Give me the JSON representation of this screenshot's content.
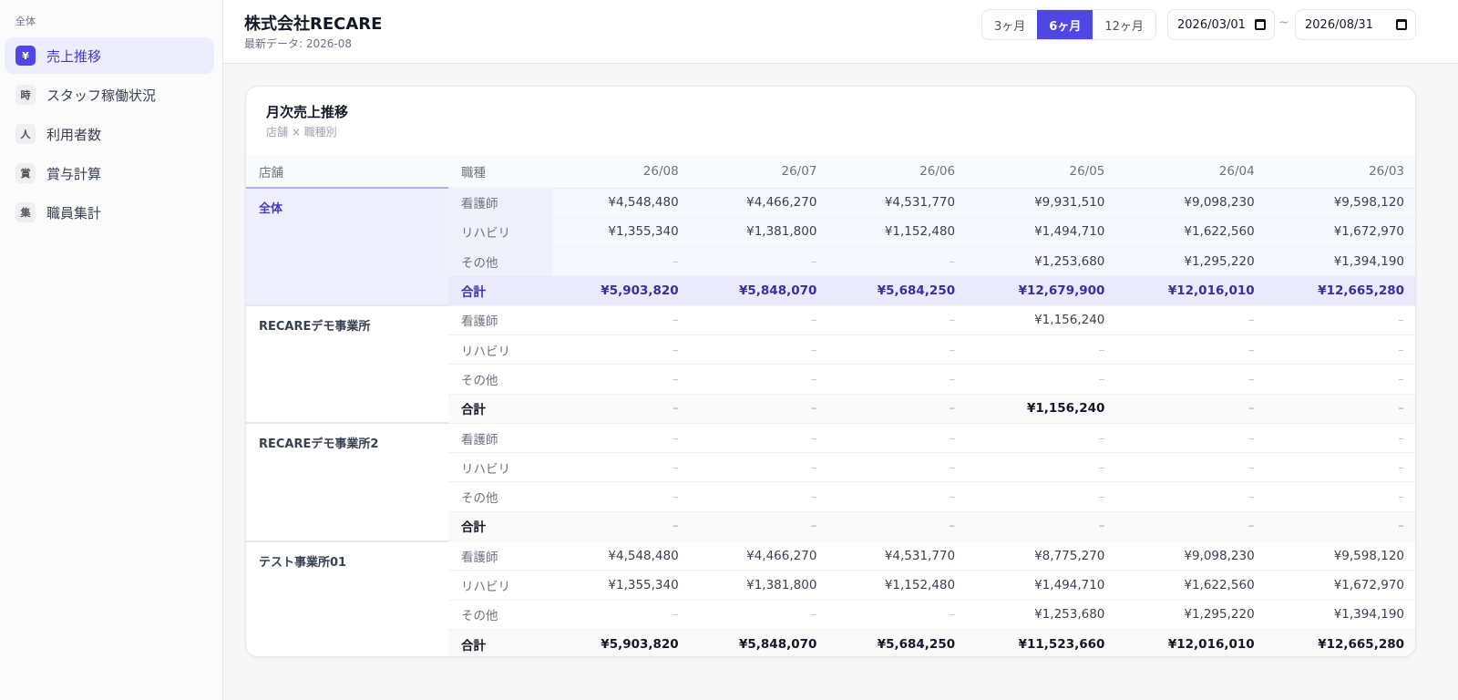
{
  "sidebar": {
    "section": "全体",
    "items": [
      {
        "icon": "¥",
        "label": "売上推移"
      },
      {
        "icon": "時",
        "label": "スタッフ稼働状況"
      },
      {
        "icon": "人",
        "label": "利用者数"
      },
      {
        "icon": "賞",
        "label": "賞与計算"
      },
      {
        "icon": "集",
        "label": "職員集計"
      }
    ]
  },
  "header": {
    "title": "株式会社RECARE",
    "subtitle": "最新データ: 2026-08",
    "ranges": [
      "3ヶ月",
      "6ヶ月",
      "12ヶ月"
    ],
    "start_date": "2026/03/01",
    "separator": "~",
    "end_date": "2026/08/31"
  },
  "card": {
    "title": "月次売上推移",
    "subtitle": "店舗 × 職種別",
    "columns": [
      "店舗",
      "職種",
      "26/08",
      "26/07",
      "26/06",
      "26/05",
      "26/04",
      "26/03"
    ],
    "groups": [
      {
        "store": "全体",
        "rows": [
          {
            "role": "看護師",
            "cells": [
              "¥4,548,480",
              "¥4,466,270",
              "¥4,531,770",
              "¥9,931,510",
              "¥9,098,230",
              "¥9,598,120"
            ]
          },
          {
            "role": "リハビリ",
            "cells": [
              "¥1,355,340",
              "¥1,381,800",
              "¥1,152,480",
              "¥1,494,710",
              "¥1,622,560",
              "¥1,672,970"
            ]
          },
          {
            "role": "その他",
            "cells": [
              "–",
              "–",
              "–",
              "¥1,253,680",
              "¥1,295,220",
              "¥1,394,190"
            ]
          },
          {
            "role": "合計",
            "cells": [
              "¥5,903,820",
              "¥5,848,070",
              "¥5,684,250",
              "¥12,679,900",
              "¥12,016,010",
              "¥12,665,280"
            ]
          }
        ]
      },
      {
        "store": "RECAREデモ事業所",
        "rows": [
          {
            "role": "看護師",
            "cells": [
              "–",
              "–",
              "–",
              "¥1,156,240",
              "–",
              "–"
            ]
          },
          {
            "role": "リハビリ",
            "cells": [
              "–",
              "–",
              "–",
              "–",
              "–",
              "–"
            ]
          },
          {
            "role": "その他",
            "cells": [
              "–",
              "–",
              "–",
              "–",
              "–",
              "–"
            ]
          },
          {
            "role": "合計",
            "cells": [
              "–",
              "–",
              "–",
              "¥1,156,240",
              "–",
              "–"
            ]
          }
        ]
      },
      {
        "store": "RECAREデモ事業所2",
        "rows": [
          {
            "role": "看護師",
            "cells": [
              "–",
              "–",
              "–",
              "–",
              "–",
              "–"
            ]
          },
          {
            "role": "リハビリ",
            "cells": [
              "–",
              "–",
              "–",
              "–",
              "–",
              "–"
            ]
          },
          {
            "role": "その他",
            "cells": [
              "–",
              "–",
              "–",
              "–",
              "–",
              "–"
            ]
          },
          {
            "role": "合計",
            "cells": [
              "–",
              "–",
              "–",
              "–",
              "–",
              "–"
            ]
          }
        ]
      },
      {
        "store": "テスト事業所01",
        "rows": [
          {
            "role": "看護師",
            "cells": [
              "¥4,548,480",
              "¥4,466,270",
              "¥4,531,770",
              "¥8,775,270",
              "¥9,098,230",
              "¥9,598,120"
            ]
          },
          {
            "role": "リハビリ",
            "cells": [
              "¥1,355,340",
              "¥1,381,800",
              "¥1,152,480",
              "¥1,494,710",
              "¥1,622,560",
              "¥1,672,970"
            ]
          },
          {
            "role": "その他",
            "cells": [
              "–",
              "–",
              "–",
              "¥1,253,680",
              "¥1,295,220",
              "¥1,394,190"
            ]
          },
          {
            "role": "合計",
            "cells": [
              "¥5,903,820",
              "¥5,848,070",
              "¥5,684,250",
              "¥11,523,660",
              "¥12,016,010",
              "¥12,665,280"
            ]
          }
        ]
      }
    ]
  }
}
